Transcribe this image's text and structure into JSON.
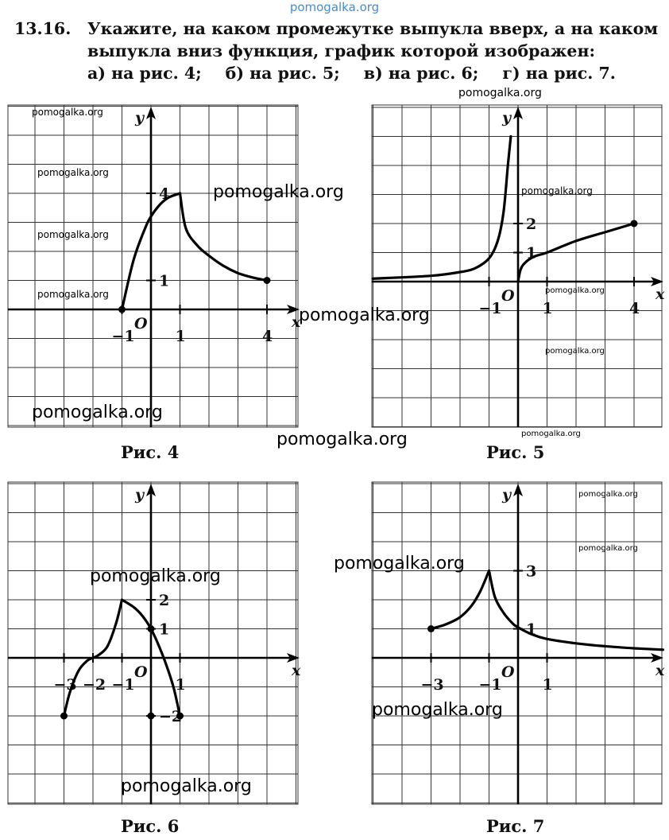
{
  "watermark": "pomogalka.org",
  "problem": {
    "number": "13.16.",
    "line1": "Укажите, на каком промежутке выпукла вверх, а на каком",
    "line2": "выпукла вниз функция, график которой изображен:",
    "parts": [
      "а) на рис. 4;",
      "б) на рис. 5;",
      "в) на рис. 6;",
      "г) на рис. 7."
    ]
  },
  "axis_labels": {
    "x": "x",
    "y": "y",
    "origin": "O"
  },
  "captions": {
    "fig4": "Рис. 4",
    "fig5": "Рис. 5",
    "fig6": "Рис. 6",
    "fig7": "Рис. 7"
  },
  "chart_data": [
    {
      "type": "line",
      "caption": "Рис. 4",
      "x_ticks": [
        "-1",
        "1",
        "4"
      ],
      "y_ticks": [
        "1",
        "4"
      ],
      "series": [
        {
          "x": [
            -1,
            -0.6,
            -0.2,
            0,
            0.3,
            0.6,
            1
          ],
          "y": [
            0,
            1.7,
            2.8,
            3.2,
            3.6,
            3.85,
            4
          ],
          "shape": "convex-up"
        },
        {
          "x": [
            1,
            1.2,
            1.6,
            2,
            2.5,
            3,
            3.5,
            4
          ],
          "y": [
            4,
            2.8,
            2.2,
            1.85,
            1.5,
            1.25,
            1.1,
            1
          ],
          "shape": "convex-down"
        }
      ],
      "points": [
        {
          "x": -1,
          "y": 0
        },
        {
          "x": 4,
          "y": 1
        }
      ]
    },
    {
      "type": "line",
      "caption": "Рис. 5",
      "x_ticks": [
        "-1",
        "1",
        "4"
      ],
      "y_ticks": [
        "1",
        "2"
      ],
      "series": [
        {
          "x": [
            -5,
            -3,
            -2,
            -1.5,
            -1,
            -0.7,
            -0.5,
            -0.35,
            -0.25
          ],
          "y": [
            0.1,
            0.2,
            0.33,
            0.45,
            0.8,
            1.4,
            2.4,
            4.0,
            5.0
          ],
          "shape": "convex-down"
        },
        {
          "x": [
            0,
            0.1,
            0.3,
            0.6,
            1,
            2,
            3,
            4
          ],
          "y": [
            0,
            0.45,
            0.7,
            0.88,
            1,
            1.4,
            1.7,
            2
          ],
          "shape": "convex-up"
        }
      ],
      "points": [
        {
          "x": 4,
          "y": 2
        }
      ]
    },
    {
      "type": "line",
      "caption": "Рис. 6",
      "x_ticks": [
        "-3",
        "-2",
        "-1",
        "1"
      ],
      "y_ticks": [
        "-2",
        "1",
        "2"
      ],
      "series": [
        {
          "x": [
            -3,
            -2.8,
            -2.5,
            -2.2,
            -2,
            -1.8,
            -1.5,
            -1.2,
            -1
          ],
          "y": [
            -2,
            -1.2,
            -0.45,
            -0.1,
            0,
            0.1,
            0.4,
            1.2,
            2
          ],
          "shape": "inflection at x=-2"
        },
        {
          "x": [
            -1,
            -0.6,
            -0.3,
            0,
            0.3,
            0.6,
            0.8,
            1
          ],
          "y": [
            2,
            1.75,
            1.45,
            1,
            0.35,
            -0.45,
            -1.1,
            -2
          ],
          "shape": "convex-up"
        }
      ],
      "points": [
        {
          "x": -3,
          "y": -2
        },
        {
          "x": 1,
          "y": -2
        },
        {
          "x": 0,
          "y": 1
        },
        {
          "x": 0,
          "y": -2
        }
      ]
    },
    {
      "type": "line",
      "caption": "Рис. 7",
      "x_ticks": [
        "-3",
        "-1",
        "1"
      ],
      "y_ticks": [
        "1",
        "3"
      ],
      "series": [
        {
          "x": [
            -3,
            -2.5,
            -2,
            -1.6,
            -1.3,
            -1
          ],
          "y": [
            1,
            1.15,
            1.4,
            1.8,
            2.3,
            3
          ],
          "shape": "convex-down"
        },
        {
          "x": [
            -1,
            -0.8,
            -0.5,
            -0.2,
            0,
            0.5,
            1,
            2,
            3,
            4,
            5
          ],
          "y": [
            3,
            2.1,
            1.55,
            1.2,
            1.05,
            0.8,
            0.65,
            0.5,
            0.4,
            0.33,
            0.28
          ],
          "shape": "convex-down"
        }
      ],
      "points": [
        {
          "x": -3,
          "y": 1
        }
      ]
    }
  ]
}
